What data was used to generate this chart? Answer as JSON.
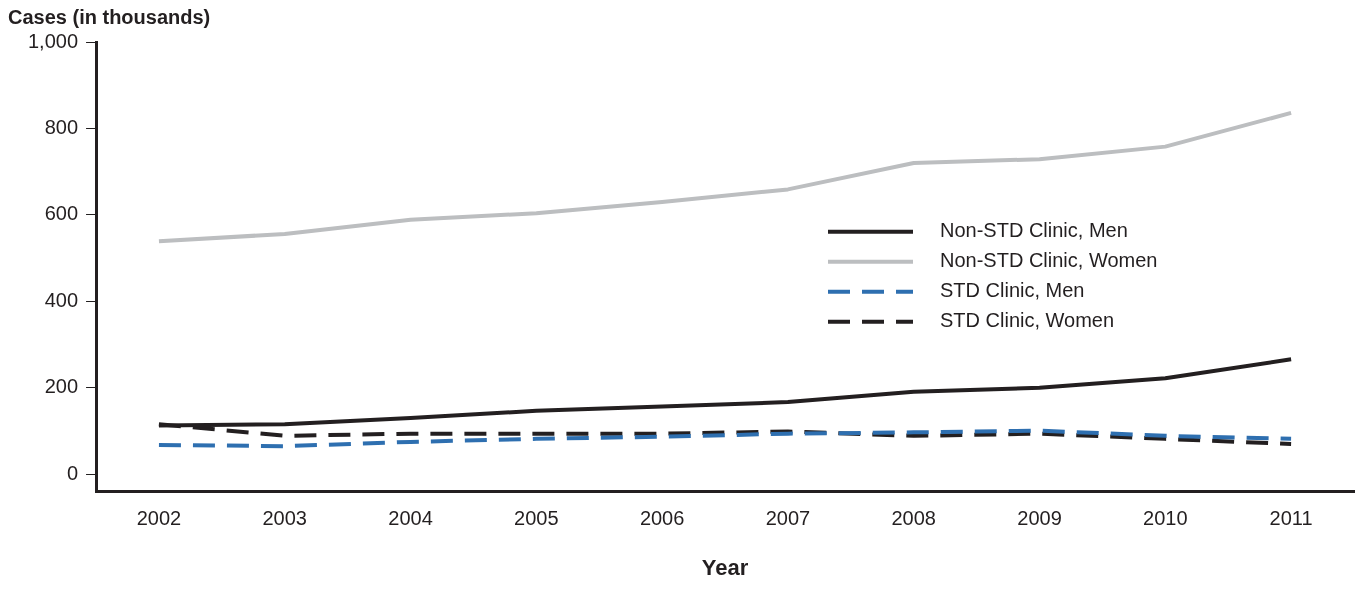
{
  "chart_data": {
    "type": "line",
    "ylabel": "Cases (in thousands)",
    "xlabel": "Year",
    "categories": [
      "2002",
      "2003",
      "2004",
      "2005",
      "2006",
      "2007",
      "2008",
      "2009",
      "2010",
      "2011"
    ],
    "series": [
      {
        "name": "Non-STD Clinic, Men",
        "color": "#231f20",
        "line_style": "solid",
        "values": [
          113,
          116,
          130,
          147,
          157,
          167,
          191,
          200,
          222,
          266
        ]
      },
      {
        "name": "Non-STD Clinic, Women",
        "color": "#bcbec0",
        "line_style": "solid",
        "values": [
          539,
          556,
          589,
          604,
          630,
          659,
          720,
          729,
          758,
          836
        ]
      },
      {
        "name": "STD Clinic, Men",
        "color": "#2e6fb0",
        "line_style": "dashed",
        "values": [
          68,
          65,
          75,
          82,
          87,
          94,
          97,
          101,
          89,
          82
        ]
      },
      {
        "name": "STD Clinic, Women",
        "color": "#231f20",
        "line_style": "dashed",
        "values": [
          116,
          89,
          94,
          94,
          94,
          99,
          89,
          94,
          82,
          70
        ]
      }
    ],
    "ylim": [
      -40,
      1000
    ],
    "yticks": [
      0,
      200,
      400,
      600,
      800,
      {
        "value": 1000,
        "label": "1,000"
      }
    ],
    "grid": false,
    "legend": "right",
    "marker": "none"
  }
}
